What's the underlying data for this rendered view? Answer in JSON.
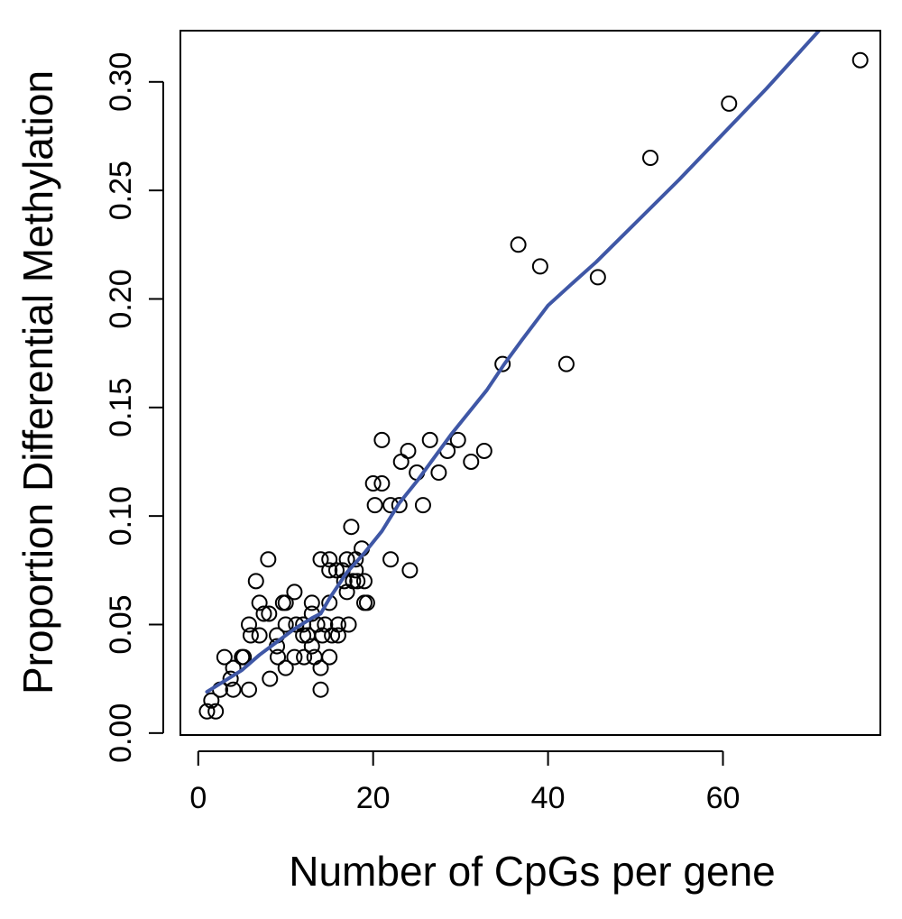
{
  "chart_data": {
    "type": "scatter",
    "title": "",
    "xlabel": "Number of CpGs per gene",
    "ylabel": "Proportion Differential Methylation",
    "xlim": [
      -2.04,
      78
    ],
    "ylim": [
      -0.0009,
      0.3236
    ],
    "xticks": [
      0,
      20,
      40,
      60
    ],
    "yticks": [
      0.0,
      0.05,
      0.1,
      0.15,
      0.2,
      0.25,
      0.3
    ],
    "xtick_labels": [
      "0",
      "20",
      "40",
      "60"
    ],
    "ytick_labels": [
      "0.00",
      "0.05",
      "0.10",
      "0.15",
      "0.20",
      "0.25",
      "0.30"
    ],
    "grid": false,
    "legend": "none",
    "colors": {
      "points": "#000000",
      "line": "#3f57a6"
    },
    "series": [
      {
        "type": "scatter",
        "marker": "open-circle",
        "points": [
          [
            1,
            0.01
          ],
          [
            1.5,
            0.015
          ],
          [
            2,
            0.01
          ],
          [
            2.5,
            0.02
          ],
          [
            3,
            0.035
          ],
          [
            3.7,
            0.025
          ],
          [
            4,
            0.03
          ],
          [
            4,
            0.02
          ],
          [
            5,
            0.035
          ],
          [
            5.2,
            0.035
          ],
          [
            5.8,
            0.02
          ],
          [
            5.8,
            0.05
          ],
          [
            6,
            0.045
          ],
          [
            6.6,
            0.07
          ],
          [
            7,
            0.06
          ],
          [
            7,
            0.045
          ],
          [
            7.5,
            0.055
          ],
          [
            8,
            0.08
          ],
          [
            8.1,
            0.055
          ],
          [
            8.2,
            0.025
          ],
          [
            9,
            0.045
          ],
          [
            9,
            0.04
          ],
          [
            9.1,
            0.035
          ],
          [
            9.7,
            0.06
          ],
          [
            10,
            0.06
          ],
          [
            10,
            0.05
          ],
          [
            10,
            0.03
          ],
          [
            11,
            0.065
          ],
          [
            11,
            0.035
          ],
          [
            11.2,
            0.05
          ],
          [
            12,
            0.05
          ],
          [
            12,
            0.045
          ],
          [
            12.1,
            0.035
          ],
          [
            12.5,
            0.045
          ],
          [
            13,
            0.06
          ],
          [
            13,
            0.055
          ],
          [
            13,
            0.04
          ],
          [
            13.3,
            0.035
          ],
          [
            13.6,
            0.05
          ],
          [
            14,
            0.08
          ],
          [
            14,
            0.03
          ],
          [
            14,
            0.02
          ],
          [
            14.2,
            0.045
          ],
          [
            14.5,
            0.05
          ],
          [
            15,
            0.08
          ],
          [
            15,
            0.075
          ],
          [
            15,
            0.06
          ],
          [
            15,
            0.035
          ],
          [
            15.3,
            0.045
          ],
          [
            15.8,
            0.075
          ],
          [
            16,
            0.05
          ],
          [
            16,
            0.045
          ],
          [
            16.5,
            0.075
          ],
          [
            16.7,
            0.07
          ],
          [
            17,
            0.08
          ],
          [
            17,
            0.065
          ],
          [
            17.2,
            0.05
          ],
          [
            17.5,
            0.095
          ],
          [
            17.7,
            0.07
          ],
          [
            18,
            0.08
          ],
          [
            18,
            0.075
          ],
          [
            18.2,
            0.07
          ],
          [
            18.7,
            0.085
          ],
          [
            19,
            0.06
          ],
          [
            19,
            0.07
          ],
          [
            19.3,
            0.06
          ],
          [
            20,
            0.115
          ],
          [
            20.2,
            0.105
          ],
          [
            21,
            0.135
          ],
          [
            21,
            0.115
          ],
          [
            22,
            0.105
          ],
          [
            22,
            0.08
          ],
          [
            23,
            0.105
          ],
          [
            23.2,
            0.125
          ],
          [
            24,
            0.13
          ],
          [
            24.2,
            0.075
          ],
          [
            25,
            0.12
          ],
          [
            25.7,
            0.105
          ],
          [
            26.5,
            0.135
          ],
          [
            27.5,
            0.12
          ],
          [
            28.5,
            0.13
          ],
          [
            29.7,
            0.135
          ],
          [
            31.2,
            0.125
          ],
          [
            32.7,
            0.13
          ],
          [
            34.8,
            0.17
          ],
          [
            36.6,
            0.225
          ],
          [
            39.1,
            0.215
          ],
          [
            42.1,
            0.17
          ],
          [
            45.7,
            0.21
          ],
          [
            51.7,
            0.265
          ],
          [
            60.7,
            0.29
          ],
          [
            75.7,
            0.31
          ]
        ]
      },
      {
        "type": "line",
        "smoother": "loess",
        "points": [
          [
            1,
            0.019
          ],
          [
            3,
            0.024
          ],
          [
            5,
            0.029
          ],
          [
            7,
            0.036
          ],
          [
            9,
            0.042
          ],
          [
            11,
            0.048
          ],
          [
            13,
            0.053
          ],
          [
            14,
            0.055
          ],
          [
            15,
            0.062
          ],
          [
            17,
            0.074
          ],
          [
            19,
            0.083
          ],
          [
            21,
            0.093
          ],
          [
            23,
            0.106
          ],
          [
            25,
            0.116
          ],
          [
            27,
            0.127
          ],
          [
            29,
            0.138
          ],
          [
            31,
            0.148
          ],
          [
            33,
            0.158
          ],
          [
            35,
            0.17
          ],
          [
            37,
            0.181
          ],
          [
            40,
            0.197
          ],
          [
            43,
            0.208
          ],
          [
            45.5,
            0.217
          ],
          [
            50,
            0.235
          ],
          [
            55,
            0.255
          ],
          [
            60,
            0.276
          ],
          [
            65,
            0.297
          ],
          [
            71.3,
            0.325
          ]
        ]
      }
    ]
  }
}
